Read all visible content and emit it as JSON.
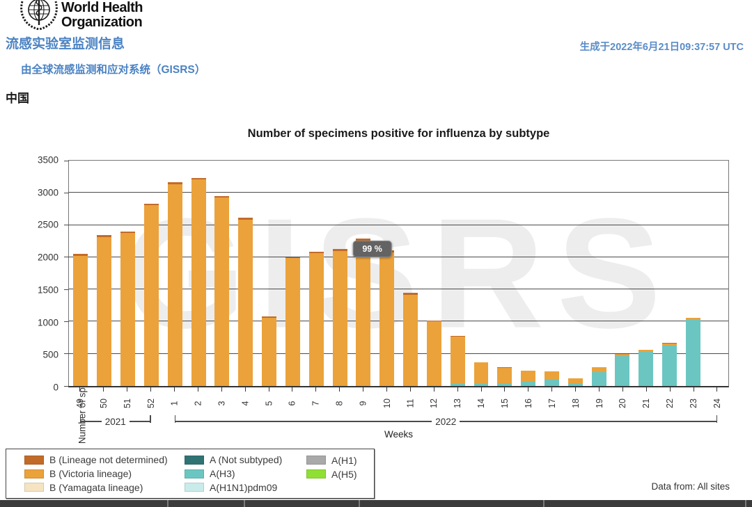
{
  "header": {
    "logo_line1": "World Health",
    "logo_line2": "Organization",
    "report_title_zh": "流感实验室监测信息",
    "report_subtitle_zh": "由全球流感监测和应对系统（GISRS）",
    "generated_at": "生成于2022年6月21日09:37:57 UTC",
    "country": "中国"
  },
  "chart_data": {
    "type": "bar",
    "stacked": true,
    "title": "Number of specimens positive for influenza by subtype",
    "xlabel": "Weeks",
    "ylabel": "Number of specimens",
    "ylim": [
      0,
      3500
    ],
    "yticks": [
      0,
      500,
      1000,
      1500,
      2000,
      2500,
      3000,
      3500
    ],
    "grid": true,
    "watermark": "GISRS",
    "categories": [
      "49",
      "50",
      "51",
      "52",
      "1",
      "2",
      "3",
      "4",
      "5",
      "6",
      "7",
      "8",
      "9",
      "10",
      "11",
      "12",
      "13",
      "14",
      "15",
      "16",
      "17",
      "18",
      "19",
      "20",
      "21",
      "22",
      "23",
      "24"
    ],
    "year_groups": [
      {
        "label": "2021",
        "span": [
          0,
          3
        ]
      },
      {
        "label": "2022",
        "span": [
          4,
          27
        ]
      }
    ],
    "series": [
      {
        "name": "A(H3)",
        "color": "#6bc6c1",
        "values": [
          0,
          0,
          0,
          0,
          0,
          0,
          0,
          0,
          0,
          0,
          0,
          15,
          0,
          0,
          0,
          15,
          30,
          30,
          45,
          80,
          110,
          40,
          220,
          470,
          530,
          630,
          1030,
          0
        ]
      },
      {
        "name": "B (Victoria lineage)",
        "color": "#eba23b",
        "values": [
          2025,
          2315,
          2380,
          2805,
          3135,
          3210,
          2925,
          2580,
          1060,
          1985,
          2060,
          2080,
          2250,
          2070,
          1415,
          990,
          735,
          340,
          235,
          160,
          115,
          80,
          70,
          30,
          30,
          25,
          30,
          0
        ]
      },
      {
        "name": "B (Lineage not determined)",
        "color": "#c26b29",
        "values": [
          25,
          25,
          20,
          25,
          25,
          20,
          25,
          30,
          20,
          15,
          30,
          35,
          40,
          40,
          35,
          15,
          15,
          0,
          15,
          0,
          0,
          0,
          0,
          0,
          0,
          15,
          0,
          0
        ]
      }
    ],
    "stack_order": "bottom-to-top",
    "totals": [
      2050,
      2340,
      2400,
      2830,
      3160,
      3230,
      2950,
      2610,
      1080,
      2000,
      2090,
      2130,
      2290,
      2110,
      1450,
      1020,
      780,
      370,
      295,
      240,
      225,
      120,
      290,
      500,
      560,
      670,
      1060,
      0
    ],
    "tooltip": {
      "text": "99 %",
      "week": "9"
    },
    "legend": [
      {
        "label": "B (Lineage not determined)",
        "color": "#c26b29"
      },
      {
        "label": "B (Victoria lineage)",
        "color": "#eba23b"
      },
      {
        "label": "B (Yamagata lineage)",
        "color": "#f6e3c2"
      },
      {
        "label": "A (Not subtyped)",
        "color": "#2f7472"
      },
      {
        "label": "A(H3)",
        "color": "#6bc6c1"
      },
      {
        "label": "A(H1N1)pdm09",
        "color": "#c9ecea"
      },
      {
        "label": "A(H1)",
        "color": "#a9a9a9"
      },
      {
        "label": "A(H5)",
        "color": "#90df33"
      }
    ],
    "legend_columns": [
      [
        0,
        1,
        2
      ],
      [
        3,
        4,
        5
      ],
      [
        6,
        7
      ]
    ],
    "footnote": "Data from: All sites"
  }
}
